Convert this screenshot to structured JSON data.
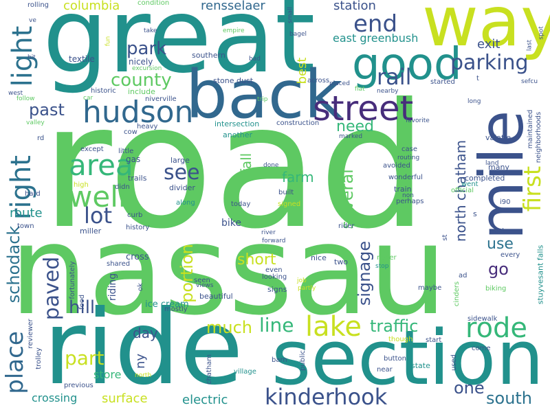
{
  "palette": {
    "teal": "#21918c",
    "green": "#5ec962",
    "lime": "#c8e020",
    "blue": "#3b528b",
    "indigo": "#443983",
    "deep": "#472d7b",
    "sea": "#2c728e",
    "mint": "#28ae80",
    "bright": "#addc30",
    "leaf": "#90d743",
    "jade": "#35b779",
    "yellow": "#fde725",
    "cyan": "#1fa187",
    "steel": "#31688e",
    "navy": "#414487",
    "plum": "#482878"
  },
  "words": [
    "road",
    "nassau",
    "ride",
    "great",
    "section",
    "way",
    "back",
    "mile",
    "good",
    "street",
    "hudson",
    "right",
    "light",
    "area",
    "well",
    "kinderhook",
    "end",
    "lake",
    "rode",
    "place",
    "rail",
    "parking",
    "park",
    "county",
    "lot",
    "first",
    "see",
    "paved",
    "north chatham",
    "past",
    "hill",
    "part",
    "much",
    "line",
    "portion",
    "traffic",
    "short",
    "one",
    "south",
    "schodack",
    "signage",
    "several",
    "need",
    "farm",
    "fall",
    "go",
    "use",
    "columbia",
    "rensselaer",
    "station",
    "east greenbush",
    "exit",
    "best",
    "route",
    "day",
    "store",
    "crossing",
    "surface",
    "electric",
    "ny",
    "bike",
    "riding",
    "cross",
    "ice cream",
    "beautiful",
    "stone dust",
    "southern",
    "nicely",
    "textile",
    "include",
    "historic",
    "niverville",
    "intersection",
    "construction",
    "another",
    "gas",
    "trails",
    "large",
    "divider",
    "along",
    "today",
    "signed",
    "built",
    "wonderful",
    "train",
    "non",
    "perhaps",
    "completed",
    "many",
    "rider",
    "two",
    "never",
    "stop",
    "even",
    "looking",
    "signs",
    "partly",
    "job",
    "nice",
    "seen",
    "views",
    "shared",
    "cow",
    "heavy",
    "little",
    "except",
    "didn",
    "high",
    "hard",
    "town",
    "history",
    "curb",
    "miller",
    "trolley",
    "reviewer",
    "fortunately",
    "food",
    "ok",
    "mostly",
    "previous",
    "north",
    "chatham",
    "village",
    "barn",
    "public",
    "button",
    "near",
    "state",
    "used",
    "come",
    "start",
    "though",
    "sidewalk",
    "biking",
    "cinders",
    "maybe",
    "ad",
    "st",
    "next",
    "every",
    "stuyvesant falls",
    "s",
    "i90",
    "went",
    "official",
    "land",
    "valatie",
    "neighborhoods",
    "maintained",
    "sefcu",
    "long",
    "t",
    "last",
    "spot",
    "across",
    "placed",
    "flat",
    "nearby",
    "started",
    "favorite",
    "marked",
    "case",
    "routing",
    "avoided",
    "done",
    "river",
    "forward",
    "trip",
    "bad",
    "bagel",
    "small",
    "empire",
    "take",
    "fun",
    "excursion",
    "car",
    "follow",
    "west",
    "valley",
    "rd",
    "hit",
    "ve",
    "rolling",
    "condition"
  ]
}
